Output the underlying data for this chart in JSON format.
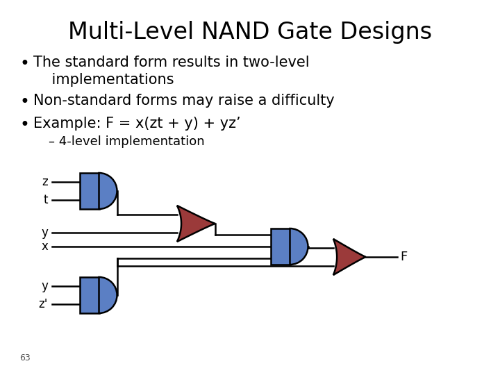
{
  "title": "Multi-Level NAND Gate Designs",
  "bullet1": "The standard form results in two-level",
  "bullet1b": "    implementations",
  "bullet2": "Non-standard forms may raise a difficulty",
  "bullet3": "Example: F = x(zt + y) + yz’",
  "sub_bullet": "– 4-level implementation",
  "page_num": "63",
  "bg_color": "#ffffff",
  "text_color": "#000000",
  "blue": "#5b7fc4",
  "red": "#9b3a3a",
  "line_color": "#000000",
  "title_fontsize": 24,
  "bullet_fontsize": 15,
  "sub_fontsize": 13
}
